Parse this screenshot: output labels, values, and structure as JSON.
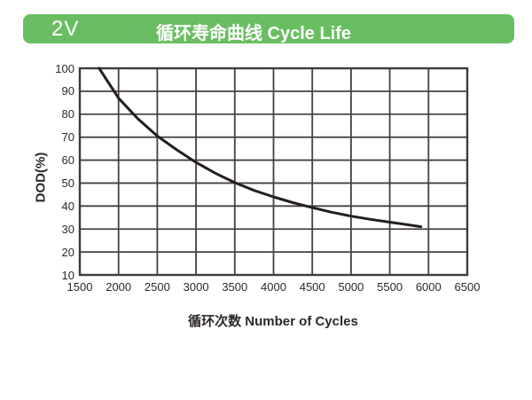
{
  "header": {
    "badge": "2V",
    "title": "循环寿命曲线 Cycle Life",
    "bg_color": "#6abe62",
    "text_color": "#ffffff"
  },
  "chart_data": {
    "type": "line",
    "title": "循环寿命曲线 Cycle Life",
    "xlabel": "循环次数 Number of Cycles",
    "ylabel": "DOD(%)",
    "xlim": [
      1500,
      6500
    ],
    "ylim": [
      10,
      100
    ],
    "x_ticks": [
      1500,
      2000,
      2500,
      3000,
      3500,
      4000,
      4500,
      5000,
      5500,
      6000,
      6500
    ],
    "y_ticks": [
      100,
      90,
      80,
      70,
      60,
      50,
      40,
      30,
      20,
      10
    ],
    "grid": true,
    "legend": "none",
    "series": [
      {
        "name": "cycle-life-curve",
        "x": [
          1750,
          2000,
          2250,
          2500,
          2750,
          3000,
          3250,
          3500,
          3750,
          4000,
          4250,
          4500,
          4750,
          5000,
          5250,
          5500,
          5750,
          5900
        ],
        "y": [
          100,
          87,
          78,
          70.5,
          64.5,
          59,
          54.3,
          50.2,
          46.8,
          44,
          41.5,
          39.3,
          37.3,
          35.6,
          34.2,
          33,
          31.8,
          31
        ]
      }
    ],
    "colors": {
      "grid": "#474140",
      "border": "#403a39",
      "curve": "#241f1d",
      "text": "#2d2826"
    }
  }
}
